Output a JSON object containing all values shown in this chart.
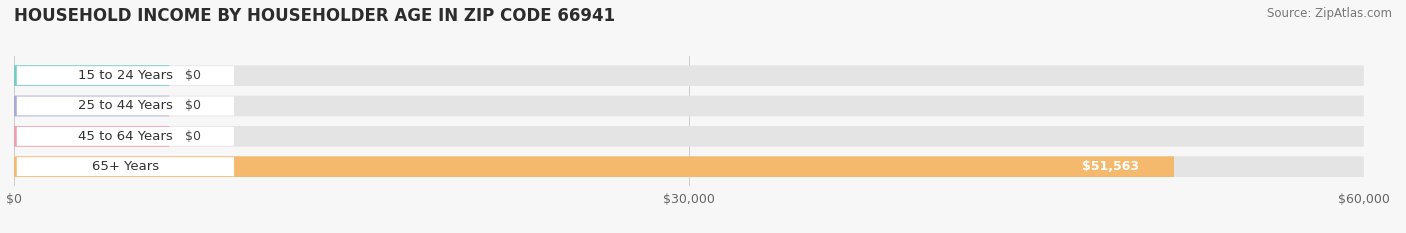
{
  "title": "HOUSEHOLD INCOME BY HOUSEHOLDER AGE IN ZIP CODE 66941",
  "source": "Source: ZipAtlas.com",
  "categories": [
    "15 to 24 Years",
    "25 to 44 Years",
    "45 to 64 Years",
    "65+ Years"
  ],
  "values": [
    0,
    0,
    0,
    51563
  ],
  "bar_colors": [
    "#72cdc9",
    "#a8a8d8",
    "#f09db0",
    "#f5b96e"
  ],
  "value_labels": [
    "$0",
    "$0",
    "$0",
    "$51,563"
  ],
  "xlim": [
    0,
    60000
  ],
  "xticks": [
    0,
    30000,
    60000
  ],
  "xticklabels": [
    "$0",
    "$30,000",
    "$60,000"
  ],
  "background_color": "#f7f7f7",
  "bar_bg_color": "#e4e4e4",
  "white_label_bg": "#ffffff",
  "title_fontsize": 12,
  "source_fontsize": 8.5,
  "tick_fontsize": 9,
  "cat_fontsize": 9.5,
  "value_fontsize": 9
}
